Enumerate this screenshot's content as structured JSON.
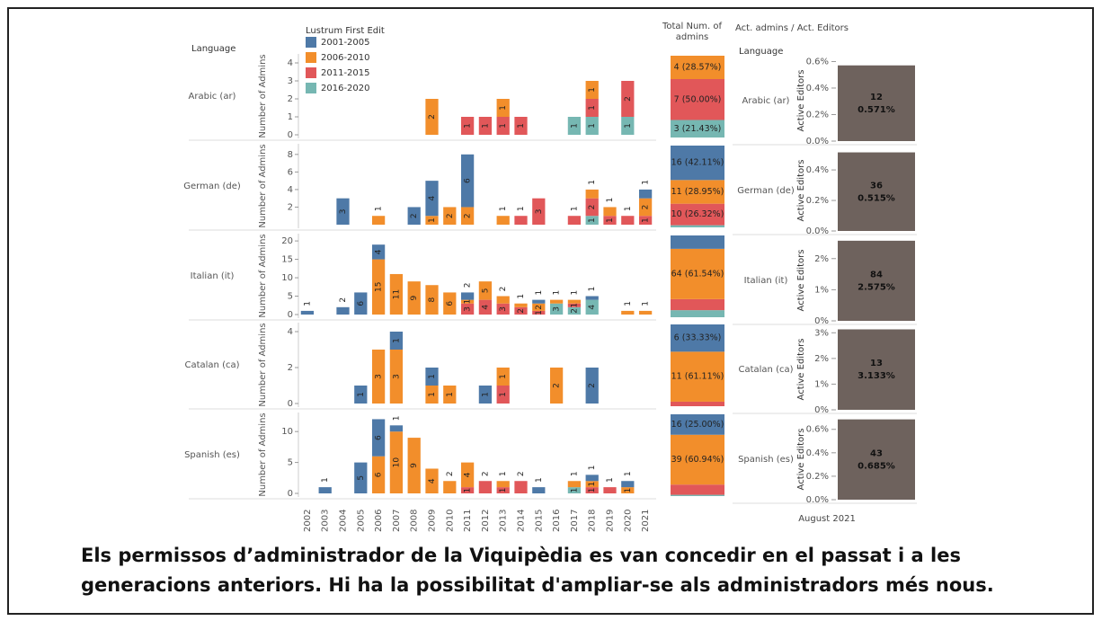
{
  "chart_data": [
    {
      "type": "bar",
      "stacked": true,
      "row_header": "Language",
      "legend_title": "Lustrum First Edit",
      "categories": [
        "2002",
        "2003",
        "2004",
        "2005",
        "2006",
        "2007",
        "2008",
        "2009",
        "2010",
        "2011",
        "2012",
        "2013",
        "2014",
        "2015",
        "2016",
        "2017",
        "2018",
        "2019",
        "2020",
        "2021"
      ],
      "series": [
        {
          "name": "2001-2005",
          "color": "#4e79a7"
        },
        {
          "name": "2006-2010",
          "color": "#f28e2b"
        },
        {
          "name": "2011-2015",
          "color": "#e15759"
        },
        {
          "name": "2016-2020",
          "color": "#76b7b2"
        }
      ],
      "facets": [
        {
          "name": "Arabic (ar)",
          "ylabel": "Number of Admins",
          "ylim": [
            0,
            4.3
          ],
          "yticks": [
            0,
            1,
            2,
            3,
            4
          ],
          "values": [
            [
              null,
              null,
              null,
              null,
              null,
              null,
              null,
              null,
              null,
              null,
              null,
              null,
              null,
              null,
              null,
              null,
              null,
              null,
              null,
              null
            ],
            [
              null,
              null,
              null,
              null,
              null,
              null,
              null,
              2,
              null,
              null,
              null,
              1,
              null,
              null,
              null,
              null,
              1,
              null,
              null,
              null
            ],
            [
              null,
              null,
              null,
              null,
              null,
              null,
              null,
              null,
              null,
              1,
              1,
              1,
              1,
              null,
              null,
              null,
              1,
              null,
              2,
              null
            ],
            [
              null,
              null,
              null,
              null,
              null,
              null,
              null,
              null,
              null,
              null,
              null,
              null,
              null,
              null,
              null,
              1,
              1,
              null,
              1,
              null
            ]
          ]
        },
        {
          "name": "German (de)",
          "ylabel": "Number of Admins",
          "ylim": [
            0,
            8.8
          ],
          "yticks": [
            2,
            4,
            6,
            8
          ],
          "values": [
            [
              null,
              null,
              3,
              null,
              null,
              null,
              2,
              4,
              null,
              6,
              null,
              null,
              null,
              null,
              null,
              null,
              null,
              null,
              null,
              1
            ],
            [
              null,
              null,
              null,
              null,
              1,
              null,
              null,
              1,
              2,
              2,
              null,
              1,
              null,
              null,
              null,
              null,
              1,
              1,
              null,
              2
            ],
            [
              null,
              null,
              null,
              null,
              null,
              null,
              null,
              null,
              null,
              null,
              null,
              null,
              1,
              3,
              null,
              1,
              2,
              1,
              1,
              1
            ],
            [
              null,
              null,
              null,
              null,
              null,
              null,
              null,
              null,
              null,
              null,
              null,
              null,
              null,
              null,
              null,
              null,
              1,
              null,
              null,
              null
            ]
          ]
        },
        {
          "name": "Italian (it)",
          "ylabel": "Number of Admins",
          "ylim": [
            0,
            21
          ],
          "yticks": [
            0,
            5,
            10,
            15,
            20
          ],
          "values": [
            [
              1,
              null,
              2,
              6,
              4,
              null,
              null,
              null,
              null,
              2,
              null,
              null,
              null,
              1,
              null,
              null,
              1,
              null,
              null,
              null
            ],
            [
              null,
              null,
              null,
              null,
              15,
              11,
              9,
              8,
              6,
              1,
              5,
              2,
              1,
              2,
              1,
              1,
              null,
              null,
              1,
              1
            ],
            [
              null,
              null,
              null,
              null,
              null,
              null,
              null,
              null,
              null,
              3,
              4,
              3,
              2,
              1,
              null,
              1,
              null,
              null,
              null,
              null
            ],
            [
              null,
              null,
              null,
              null,
              null,
              null,
              null,
              null,
              null,
              null,
              null,
              null,
              null,
              null,
              3,
              2,
              4,
              null,
              null,
              null
            ]
          ]
        },
        {
          "name": "Catalan (ca)",
          "ylabel": "Number of Admins",
          "ylim": [
            0,
            4.3
          ],
          "yticks": [
            0,
            2,
            4
          ],
          "values": [
            [
              null,
              null,
              null,
              1,
              null,
              1,
              null,
              1,
              null,
              null,
              1,
              null,
              null,
              null,
              null,
              null,
              2,
              null,
              null,
              null
            ],
            [
              null,
              null,
              null,
              null,
              3,
              3,
              null,
              1,
              1,
              null,
              null,
              1,
              null,
              null,
              2,
              null,
              null,
              null,
              null,
              null
            ],
            [
              null,
              null,
              null,
              null,
              null,
              null,
              null,
              null,
              null,
              null,
              null,
              1,
              null,
              null,
              null,
              null,
              null,
              null,
              null,
              null
            ],
            [
              null,
              null,
              null,
              null,
              null,
              null,
              null,
              null,
              null,
              null,
              null,
              null,
              null,
              null,
              null,
              null,
              null,
              null,
              null,
              null
            ]
          ]
        },
        {
          "name": "Spanish (es)",
          "ylabel": "Number of Admins",
          "ylim": [
            0,
            12.5
          ],
          "yticks": [
            0,
            5,
            10
          ],
          "values": [
            [
              null,
              1,
              null,
              5,
              6,
              1,
              null,
              null,
              null,
              null,
              null,
              null,
              null,
              1,
              null,
              null,
              1,
              null,
              1,
              null
            ],
            [
              null,
              null,
              null,
              null,
              6,
              10,
              9,
              4,
              2,
              4,
              null,
              1,
              null,
              null,
              null,
              1,
              1,
              null,
              1,
              null
            ],
            [
              null,
              null,
              null,
              null,
              null,
              null,
              null,
              null,
              null,
              1,
              2,
              1,
              2,
              null,
              null,
              null,
              1,
              1,
              null,
              null
            ],
            [
              null,
              null,
              null,
              null,
              null,
              null,
              null,
              null,
              null,
              null,
              null,
              null,
              null,
              null,
              null,
              1,
              null,
              null,
              null,
              null
            ]
          ]
        }
      ]
    },
    {
      "type": "bar",
      "stacked": true,
      "title": "Total Num. of admins",
      "facets": [
        {
          "values": [
            null,
            4,
            7,
            3
          ],
          "value_labels": [
            null,
            "4 (28.57%)",
            "7 (50.00%)",
            "3 (21.43%)"
          ]
        },
        {
          "values": [
            16,
            11,
            10,
            1
          ],
          "value_labels": [
            "16 (42.11%)",
            "11 (28.95%)",
            "10 (26.32%)",
            null
          ]
        },
        {
          "values": [
            17,
            64,
            14,
            9
          ],
          "value_labels": [
            null,
            "64 (61.54%)",
            null,
            null
          ]
        },
        {
          "values": [
            6,
            11,
            1,
            null
          ],
          "value_labels": [
            "6 (33.33%)",
            "11 (61.11%)",
            null,
            null
          ]
        },
        {
          "values": [
            16,
            39,
            8,
            1
          ],
          "value_labels": [
            "16 (25.00%)",
            "39 (60.94%)",
            null,
            null
          ]
        }
      ]
    },
    {
      "type": "bar",
      "title": "Act. admins / Act. Editors",
      "row_header": "Language",
      "xlabel": "August 2021",
      "color": "#6e625d",
      "facets": [
        {
          "name": "Arabic (ar)",
          "ylabel": "Active Editors",
          "ylim": [
            0,
            0.61
          ],
          "yticks": [
            {
              "value": 0,
              "label": "0.0%"
            },
            {
              "value": 0.2,
              "label": "0.2%"
            },
            {
              "value": 0.4,
              "label": "0.4%"
            },
            {
              "value": 0.6,
              "label": "0.6%"
            }
          ],
          "admins": 12,
          "value": 0.571,
          "value_label": "0.571%"
        },
        {
          "name": "German (de)",
          "ylabel": "Active Editors",
          "ylim": [
            0,
            0.53
          ],
          "yticks": [
            {
              "value": 0,
              "label": "0.0%"
            },
            {
              "value": 0.2,
              "label": "0.2%"
            },
            {
              "value": 0.4,
              "label": "0.4%"
            }
          ],
          "admins": 36,
          "value": 0.515,
          "value_label": "0.515%"
        },
        {
          "name": "Italian (it)",
          "ylabel": "Active Editors",
          "ylim": [
            0,
            2.6
          ],
          "yticks": [
            {
              "value": 0,
              "label": "0%"
            },
            {
              "value": 1,
              "label": "1%"
            },
            {
              "value": 2,
              "label": "2%"
            }
          ],
          "admins": 84,
          "value": 2.575,
          "value_label": "2.575%"
        },
        {
          "name": "Catalan (ca)",
          "ylabel": "Active Editors",
          "ylim": [
            0,
            3.15
          ],
          "yticks": [
            {
              "value": 0,
              "label": "0%"
            },
            {
              "value": 1,
              "label": "1%"
            },
            {
              "value": 2,
              "label": "2%"
            },
            {
              "value": 3,
              "label": "3%"
            }
          ],
          "admins": 13,
          "value": 3.133,
          "value_label": "3.133%"
        },
        {
          "name": "Spanish (es)",
          "ylabel": "Active Editors",
          "ylim": [
            0,
            0.69
          ],
          "yticks": [
            {
              "value": 0,
              "label": "0.0%"
            },
            {
              "value": 0.2,
              "label": "0.2%"
            },
            {
              "value": 0.4,
              "label": "0.4%"
            },
            {
              "value": 0.6,
              "label": "0.6%"
            }
          ],
          "admins": 43,
          "value": 0.685,
          "value_label": "0.685%"
        }
      ]
    }
  ],
  "caption": "Els permissos d’administrador de la Viquipèdia es van concedir en el passat i a les generacions anteriors. Hi ha la possibilitat d'ampliar-se als administradors més nous."
}
